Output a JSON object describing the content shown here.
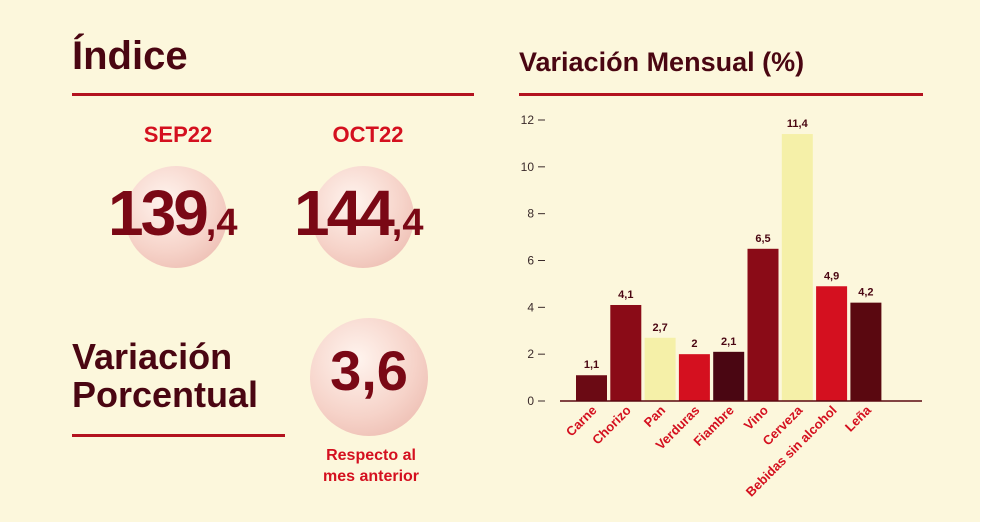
{
  "index": {
    "title": "Índice",
    "periods": [
      {
        "label": "SEP22",
        "int": "139",
        "dec": ",4"
      },
      {
        "label": "OCT22",
        "int": "144",
        "dec": ",4"
      }
    ]
  },
  "variation": {
    "title_line1": "Variación",
    "title_line2": "Porcentual",
    "value": "3,6",
    "note_line1": "Respecto al",
    "note_line2": "mes anterior"
  },
  "colors": {
    "background": "#fcf7dc",
    "accent_red": "#d4101f",
    "dark_red": "#7a0815",
    "rule": "#b3121f"
  },
  "chart_data": {
    "type": "bar",
    "title": "Variación Mensual (%)",
    "categories": [
      "Carne",
      "Chorizo",
      "Pan",
      "Verduras",
      "Fiambre",
      "Vino",
      "Cerveza",
      "Bebidas sin alcohol",
      "Leña"
    ],
    "values": [
      1.1,
      4.1,
      2.7,
      2,
      2.1,
      6.5,
      11.4,
      4.9,
      4.2
    ],
    "value_labels": [
      "1,1",
      "4,1",
      "2,7",
      "2",
      "2,1",
      "6,5",
      "11,4",
      "4,9",
      "4,2"
    ],
    "bar_colors": [
      "#6b0a14",
      "#8a0b17",
      "#f5f0a8",
      "#d4101f",
      "#4a0612",
      "#8a0b17",
      "#f5f0a8",
      "#d4101f",
      "#5a0810"
    ],
    "ylim": [
      0,
      12
    ],
    "yticks": [
      "0",
      "2",
      "4",
      "6",
      "8",
      "10",
      "12"
    ],
    "grid": false
  }
}
